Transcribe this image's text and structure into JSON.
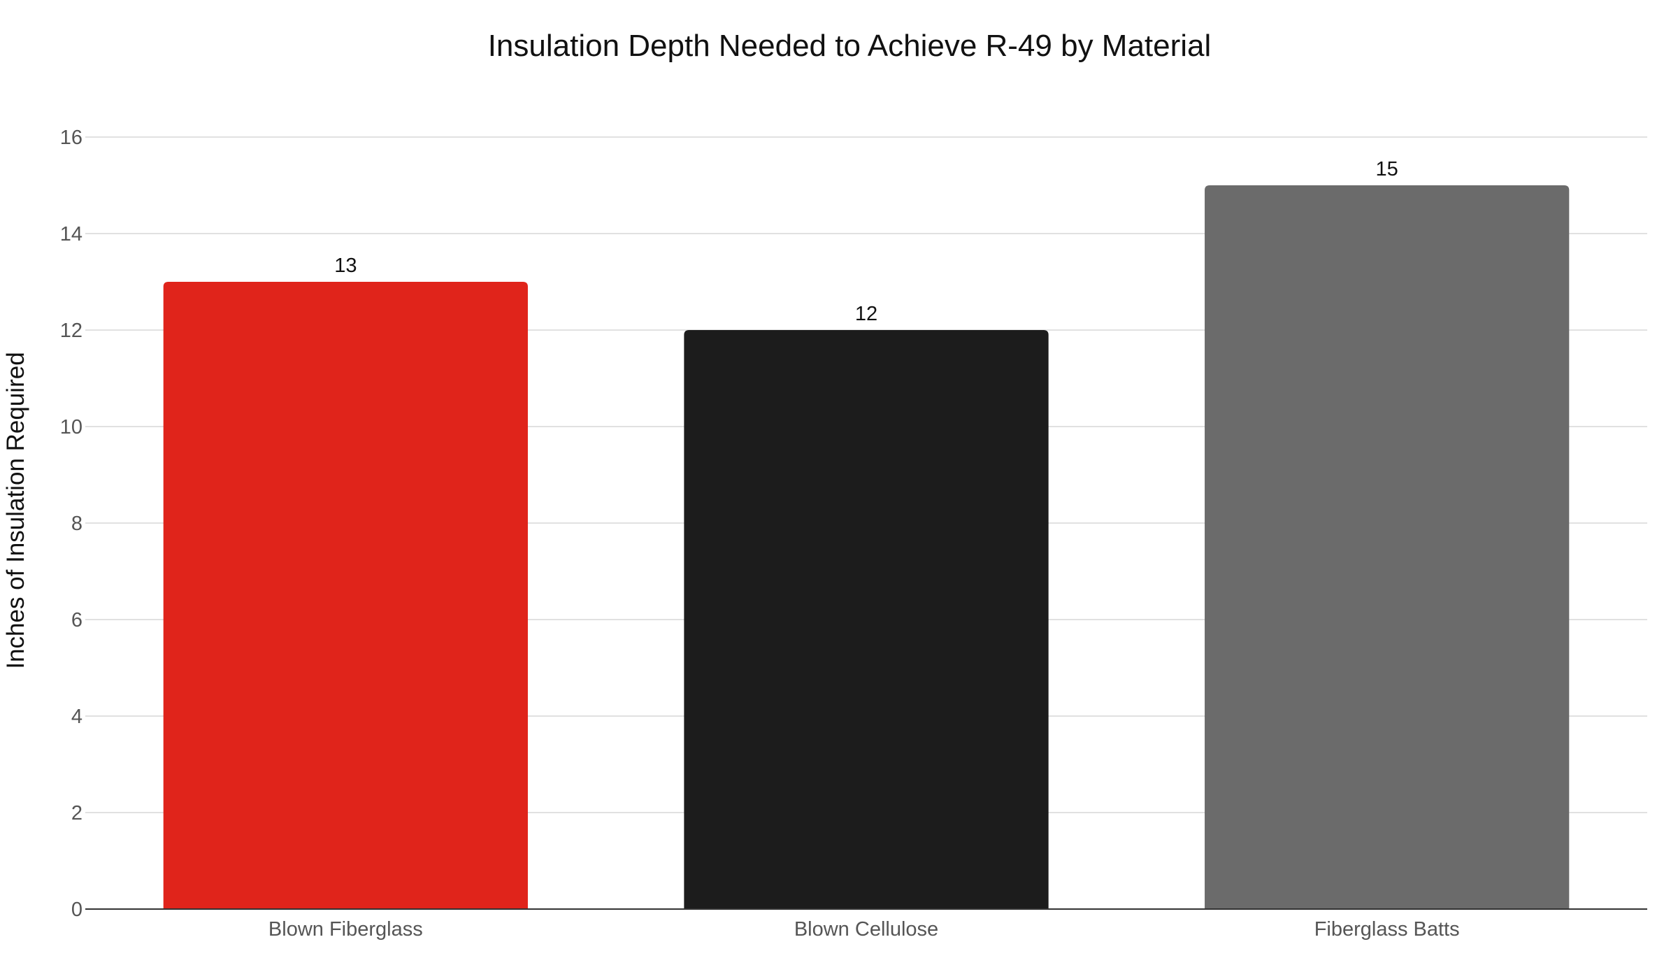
{
  "chart_data": {
    "type": "bar",
    "title": "Insulation Depth Needed to Achieve R-49 by Material",
    "xlabel": "",
    "ylabel": "Inches of Insulation Required",
    "categories": [
      "Blown Fiberglass",
      "Blown Cellulose",
      "Fiberglass Batts"
    ],
    "values": [
      13,
      12,
      15
    ],
    "data_labels": [
      "13",
      "12",
      "15"
    ],
    "colors": [
      "#e0241b",
      "#1c1c1c",
      "#6b6b6b"
    ],
    "ylim": [
      0,
      16
    ],
    "yticks": [
      0,
      2,
      4,
      6,
      8,
      10,
      12,
      14,
      16
    ],
    "ytick_labels": [
      "0",
      "2",
      "4",
      "6",
      "8",
      "10",
      "12",
      "14",
      "16"
    ],
    "grid": true,
    "legend": "none"
  }
}
